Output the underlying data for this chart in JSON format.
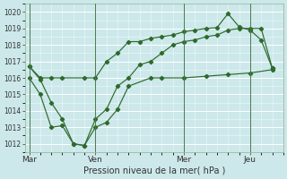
{
  "title": "Pression niveau de la mer( hPa )",
  "bg_color": "#cce8ea",
  "grid_color": "#ffffff",
  "line_color": "#2d6a2d",
  "tick_color": "#333333",
  "ylim": [
    1011.5,
    1020.5
  ],
  "yticks": [
    1012,
    1013,
    1014,
    1015,
    1016,
    1017,
    1018,
    1019,
    1020
  ],
  "xtick_labels": [
    "Mar",
    "Ven",
    "Mer",
    "Jeu"
  ],
  "xtick_positions": [
    0.0,
    3.0,
    7.0,
    10.0
  ],
  "vline_positions": [
    0.0,
    3.0,
    7.0,
    10.0
  ],
  "xlim": [
    -0.2,
    11.5
  ],
  "series_upper_x": [
    0,
    0.5,
    1.0,
    1.5,
    2.5,
    3.0,
    3.5,
    4.0,
    4.5,
    5.0,
    5.5,
    6.0,
    6.5,
    7.0,
    7.5,
    8.0,
    8.5,
    9.0,
    9.5,
    10.0,
    10.5,
    11.0
  ],
  "series_upper_y": [
    1016.7,
    1016.0,
    1016.0,
    1016.0,
    1016.0,
    1016.0,
    1017.0,
    1017.5,
    1018.2,
    1018.2,
    1018.4,
    1018.5,
    1018.6,
    1018.8,
    1018.9,
    1019.0,
    1019.05,
    1019.9,
    1019.1,
    1018.9,
    1018.3,
    1016.6
  ],
  "series_lower_x": [
    0,
    0.5,
    1.0,
    1.5,
    2.0,
    2.5,
    3.0,
    3.5,
    4.0,
    4.5,
    5.5,
    6.0,
    7.0,
    8.0,
    9.0,
    10.0,
    11.0
  ],
  "series_lower_y": [
    1016.0,
    1015.0,
    1013.0,
    1013.1,
    1012.0,
    1011.9,
    1013.0,
    1013.3,
    1014.1,
    1015.5,
    1016.0,
    1016.0,
    1016.0,
    1016.1,
    1016.2,
    1016.3,
    1016.5
  ],
  "series_mid_x": [
    0,
    0.5,
    1.0,
    1.5,
    2.0,
    2.5,
    3.0,
    3.5,
    4.0,
    4.5,
    5.0,
    5.5,
    6.0,
    6.5,
    7.0,
    7.5,
    8.0,
    8.5,
    9.0,
    9.5,
    10.0,
    10.5,
    11.0
  ],
  "series_mid_y": [
    1016.7,
    1015.9,
    1014.5,
    1013.5,
    1012.0,
    1011.9,
    1013.5,
    1014.1,
    1015.5,
    1016.0,
    1016.8,
    1017.0,
    1017.5,
    1018.0,
    1018.2,
    1018.3,
    1018.5,
    1018.6,
    1018.9,
    1019.0,
    1019.0,
    1019.0,
    1016.6
  ]
}
